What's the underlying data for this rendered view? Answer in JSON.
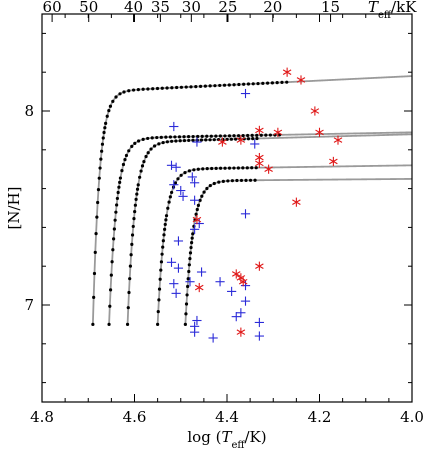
{
  "chart_data": {
    "type": "scatter",
    "xlabel_prefix": "log (",
    "xlabel_var": "T",
    "xlabel_sub": "eff",
    "xlabel_suffix": "/K)",
    "ylabel": "[N/H]",
    "top_label_var": "T",
    "top_label_sub": "eff",
    "top_label_unit": "/kK",
    "xlim": [
      4.8,
      4.0
    ],
    "ylim": [
      6.5,
      8.5
    ],
    "x_ticks": [
      "4.8",
      "4.6",
      "4.4",
      "4.2",
      "4.0"
    ],
    "x_tick_values": [
      4.8,
      4.6,
      4.4,
      4.2,
      4.0
    ],
    "y_ticks": [
      "7",
      "8"
    ],
    "y_tick_values": [
      7,
      8
    ],
    "top_ticks": [
      "60",
      "50",
      "40",
      "35",
      "30",
      "25",
      "20",
      "15"
    ],
    "top_tick_values": [
      60,
      50,
      40,
      35,
      30,
      25,
      20,
      15
    ],
    "tracks": [
      {
        "start_x": 4.69,
        "start_y": 6.9,
        "plateau_y": 8.1,
        "k": 0.014,
        "end_x": 4.0,
        "plateau_rise": 0.08
      },
      {
        "start_x": 4.655,
        "start_y": 6.9,
        "plateau_y": 7.86,
        "k": 0.016,
        "end_x": 4.0,
        "plateau_rise": 0.03
      },
      {
        "start_x": 4.615,
        "start_y": 6.9,
        "plateau_y": 7.84,
        "k": 0.016,
        "end_x": 4.0,
        "plateau_rise": 0.04
      },
      {
        "start_x": 4.55,
        "start_y": 6.9,
        "plateau_y": 7.7,
        "k": 0.016,
        "end_x": 4.0,
        "plateau_rise": 0.02
      },
      {
        "start_x": 4.49,
        "start_y": 6.9,
        "plateau_y": 7.64,
        "k": 0.016,
        "end_x": 4.0,
        "plateau_rise": 0.01
      }
    ],
    "track_dots_end_x": [
      4.27,
      4.28,
      4.33,
      4.33,
      4.33
    ],
    "series": [
      {
        "marker": "plus",
        "color": "#2a2ad8",
        "points": [
          [
            4.515,
            7.92
          ],
          [
            4.465,
            7.84
          ],
          [
            4.52,
            7.72
          ],
          [
            4.51,
            7.71
          ],
          [
            4.515,
            7.62
          ],
          [
            4.5,
            7.59
          ],
          [
            4.495,
            7.56
          ],
          [
            4.475,
            7.66
          ],
          [
            4.47,
            7.63
          ],
          [
            4.47,
            7.54
          ],
          [
            4.47,
            7.39
          ],
          [
            4.46,
            7.42
          ],
          [
            4.505,
            7.33
          ],
          [
            4.52,
            7.22
          ],
          [
            4.505,
            7.19
          ],
          [
            4.515,
            7.11
          ],
          [
            4.48,
            7.12
          ],
          [
            4.455,
            7.17
          ],
          [
            4.51,
            7.06
          ],
          [
            4.465,
            6.92
          ],
          [
            4.47,
            6.89
          ],
          [
            4.47,
            6.86
          ],
          [
            4.43,
            6.83
          ],
          [
            4.415,
            7.12
          ],
          [
            4.39,
            7.07
          ],
          [
            4.36,
            7.02
          ],
          [
            4.37,
            6.96
          ],
          [
            4.38,
            6.94
          ],
          [
            4.33,
            6.91
          ],
          [
            4.33,
            6.84
          ],
          [
            4.36,
            7.1
          ],
          [
            4.36,
            7.47
          ],
          [
            4.36,
            8.09
          ],
          [
            4.34,
            7.83
          ]
        ]
      },
      {
        "marker": "asterisk",
        "color": "#e01818",
        "points": [
          [
            4.27,
            8.2
          ],
          [
            4.24,
            8.16
          ],
          [
            4.21,
            8.0
          ],
          [
            4.33,
            7.9
          ],
          [
            4.29,
            7.89
          ],
          [
            4.2,
            7.89
          ],
          [
            4.16,
            7.85
          ],
          [
            4.37,
            7.85
          ],
          [
            4.41,
            7.84
          ],
          [
            4.33,
            7.76
          ],
          [
            4.33,
            7.73
          ],
          [
            4.31,
            7.7
          ],
          [
            4.17,
            7.74
          ],
          [
            4.25,
            7.53
          ],
          [
            4.465,
            7.44
          ],
          [
            4.33,
            7.2
          ],
          [
            4.38,
            7.16
          ],
          [
            4.37,
            7.14
          ],
          [
            4.365,
            7.12
          ],
          [
            4.46,
            7.09
          ],
          [
            4.37,
            6.86
          ]
        ]
      }
    ]
  }
}
